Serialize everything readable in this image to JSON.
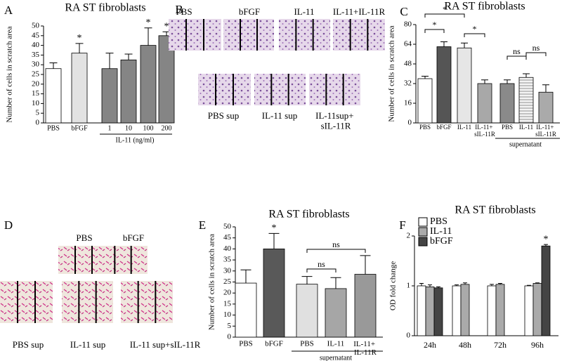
{
  "chart_data": [
    {
      "type": "bar",
      "panel": "A",
      "title": "RA ST fibroblasts",
      "y_label": "Number of cells in scratch area",
      "categories": [
        "PBS",
        "bFGF",
        "1",
        "10",
        "100",
        "200"
      ],
      "values": [
        28,
        36,
        28,
        32.5,
        40,
        45
      ],
      "errors": [
        3,
        5,
        8,
        3,
        9,
        2
      ],
      "colors": [
        "#ffffff",
        "#e2e2e2",
        "#858585",
        "#858585",
        "#858585",
        "#858585"
      ],
      "marks": [
        null,
        "*",
        null,
        null,
        "*",
        "*"
      ],
      "group_label": "IL-11 (ng/ml)",
      "ylim": [
        0,
        50
      ],
      "yticks": [
        0,
        5,
        10,
        15,
        20,
        25,
        30,
        35,
        40,
        45,
        50
      ]
    },
    {
      "type": "bar",
      "panel": "C",
      "title": "RA ST fibroblasts",
      "y_label": "Number of cells in scratch area",
      "categories": [
        "PBS",
        "bFGF",
        "IL-11",
        "IL-11+ sIL-11R",
        "PBS",
        "IL-11",
        "IL-11+ sIL-11R"
      ],
      "values": [
        36,
        62,
        61,
        32,
        32,
        37,
        25
      ],
      "errors": [
        2,
        4,
        4,
        3,
        3,
        3,
        6
      ],
      "colors": [
        "#ffffff",
        "#555555",
        "#e6e6e6",
        "#a8a8a8",
        "#8a8a8a",
        "#f4f4f4",
        "#aaaaaa"
      ],
      "hatch": [
        false,
        false,
        false,
        false,
        false,
        true,
        false
      ],
      "annotations": [
        "*",
        "*",
        "*",
        "ns",
        "ns"
      ],
      "group_label": "supernatant",
      "ylim": [
        0,
        80
      ],
      "yticks": [
        0,
        16,
        32,
        48,
        64,
        80
      ]
    },
    {
      "type": "bar",
      "panel": "E",
      "title": "RA ST fibroblasts",
      "y_label": "Number of cells in scratch area",
      "categories": [
        "PBS",
        "bFGF",
        "PBS",
        "IL-11",
        "IL-11+ IL-11R"
      ],
      "values": [
        24.5,
        40,
        24,
        22,
        28.5
      ],
      "errors": [
        6,
        7,
        3.5,
        5,
        8.5
      ],
      "colors": [
        "#ffffff",
        "#595959",
        "#e0e0e0",
        "#a6a6a6",
        "#999999"
      ],
      "marks": [
        null,
        "*",
        null,
        null,
        null
      ],
      "annotations": [
        "ns",
        "ns"
      ],
      "group_label": "supernatant",
      "ylim": [
        0,
        50
      ],
      "yticks": [
        0,
        5,
        10,
        15,
        20,
        25,
        30,
        35,
        40,
        45,
        50
      ]
    },
    {
      "type": "grouped_bar",
      "panel": "F",
      "title": "RA ST fibroblasts",
      "y_label": "OD fold change",
      "categories": [
        "24h",
        "48h",
        "72h",
        "96h"
      ],
      "series": [
        {
          "name": "PBS",
          "color": "#ffffff",
          "values": [
            1,
            1,
            1,
            1
          ],
          "errors": [
            0.05,
            0.02,
            0.03,
            0.01
          ]
        },
        {
          "name": "IL-11",
          "color": "#aaaaaa",
          "values": [
            0.98,
            1.03,
            1.03,
            1.05
          ],
          "errors": [
            0.04,
            0.03,
            0.02,
            0.01
          ]
        },
        {
          "name": "bFGF",
          "color": "#444444",
          "values": [
            0.96,
            null,
            null,
            1.8
          ],
          "errors": [
            0.02,
            null,
            null,
            0.03
          ],
          "marks": [
            null,
            null,
            null,
            "*"
          ]
        }
      ],
      "legend": "upper left",
      "ylim": [
        0,
        2
      ],
      "yticks": [
        0,
        1,
        2
      ]
    }
  ],
  "images": [
    {
      "panel": "B",
      "labels": [
        "PBS",
        "bFGF",
        "IL-11",
        "IL-11+IL-11R",
        "PBS sup",
        "IL-11 sup",
        "IL-11sup+ sIL-11R"
      ]
    },
    {
      "panel": "D",
      "labels": [
        "PBS",
        "bFGF",
        "PBS sup",
        "IL-11 sup",
        "IL-11 sup+sIL-11R"
      ]
    }
  ]
}
